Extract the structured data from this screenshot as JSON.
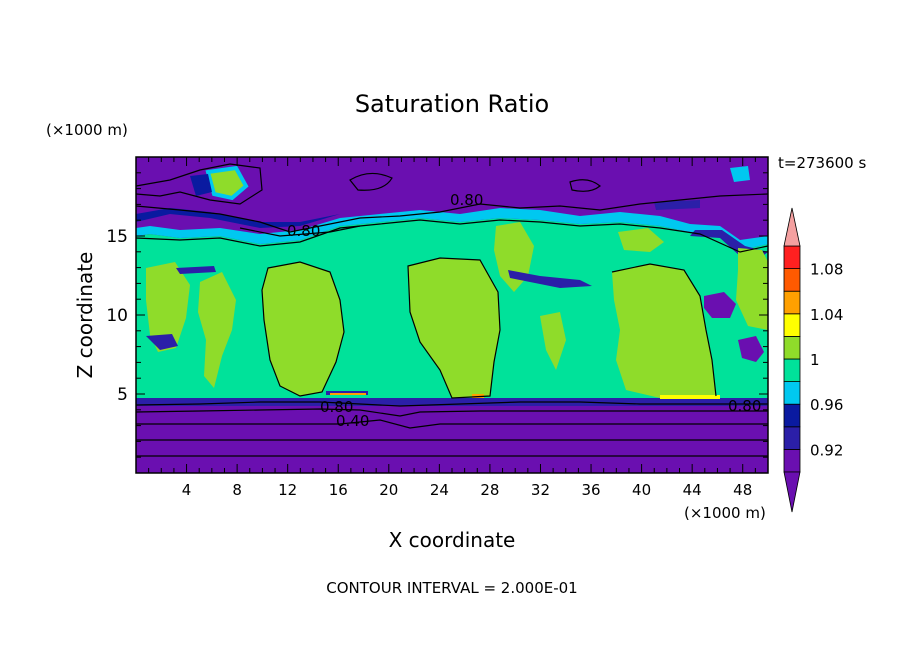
{
  "chart_data": {
    "type": "contour",
    "title": "Saturation Ratio",
    "xlabel": "X coordinate",
    "ylabel": "Z coordinate",
    "x_unit_label": "(×1000 m)",
    "y_unit_label": "(×1000 m)",
    "time_label": "t=273600 s",
    "footer": "CONTOUR INTERVAL = 2.000E-01",
    "xlim": [
      0,
      50
    ],
    "ylim": [
      0,
      20
    ],
    "xticks": [
      "4",
      "8",
      "12",
      "16",
      "20",
      "24",
      "28",
      "32",
      "36",
      "40",
      "44",
      "48"
    ],
    "yticks": [
      "5",
      "10",
      "15"
    ],
    "contour_labels": [
      "0.80",
      "0.80",
      "0.80",
      "0.80",
      "0.40"
    ],
    "colorbar": {
      "levels": [
        0.9,
        0.92,
        0.94,
        0.96,
        0.98,
        1.0,
        1.02,
        1.04,
        1.06,
        1.08,
        1.1
      ],
      "tick_labels": [
        "0.92",
        "0.96",
        "1",
        "1.04",
        "1.08"
      ],
      "tick_values": [
        0.92,
        0.96,
        1.0,
        1.04,
        1.08
      ],
      "colors": [
        "#6a0fb0",
        "#2b1fa8",
        "#0a1aa0",
        "#00c8f0",
        "#00e29a",
        "#8fdc2a",
        "#ffff00",
        "#ffa000",
        "#ff5a00",
        "#ff2020"
      ],
      "under_color": "#6a0fb0",
      "over_color": "#f4a0a0"
    },
    "regions": {
      "dry_layer_top_z": 4.3,
      "moist_layer_z": [
        4.6,
        14.3
      ],
      "upper_dry_layer_z": [
        16.5,
        20
      ]
    }
  }
}
